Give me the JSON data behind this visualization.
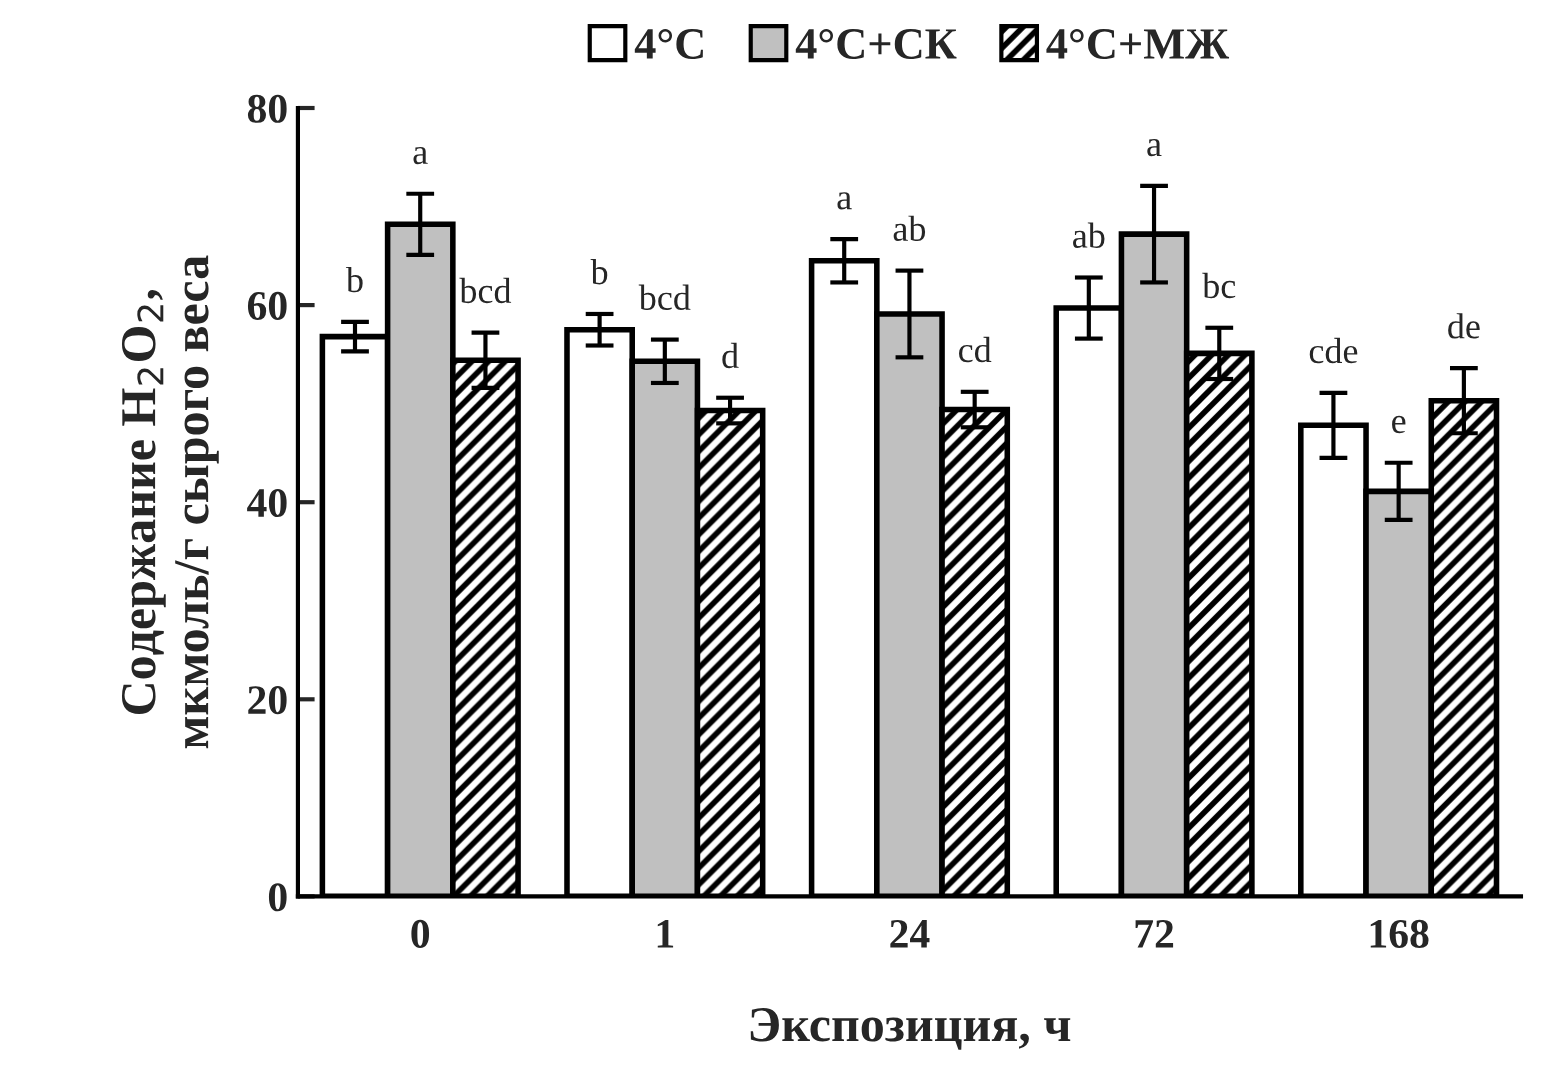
{
  "chart_data": {
    "type": "bar",
    "xlabel": "Экспозиция, ч",
    "ylabel": "Содержание H$_{2}$O$_{2}$,\nмкмоль/г сырого веса",
    "categories": [
      "0",
      "1",
      "24",
      "72",
      "168"
    ],
    "series": [
      {
        "name": "4°C",
        "color": "#ffffff",
        "values": [
          56.8,
          57.5,
          64.5,
          59.7,
          47.8
        ],
        "errors": [
          1.5,
          1.6,
          2.2,
          3.1,
          3.3
        ],
        "value_labels": [
          "b",
          "b",
          "a",
          "ab",
          "cde"
        ]
      },
      {
        "name": "4°C+СК",
        "color": "#c0c0c0",
        "values": [
          68.2,
          54.3,
          59.1,
          67.2,
          41.1
        ],
        "errors": [
          3.1,
          2.2,
          4.4,
          4.9,
          2.9
        ],
        "value_labels": [
          "a",
          "bcd",
          "ab",
          "a",
          "e"
        ]
      },
      {
        "name": "4°C+МЖ",
        "color": "#000000",
        "values": [
          54.4,
          49.3,
          49.4,
          55.1,
          50.3
        ],
        "errors": [
          2.8,
          1.3,
          1.8,
          2.6,
          3.3
        ],
        "value_labels": [
          "bcd",
          "d",
          "cd",
          "bc",
          "de"
        ]
      }
    ],
    "ylim": [
      0,
      80
    ],
    "yticks": [
      0,
      20,
      40,
      60,
      80
    ],
    "grid": false,
    "legend": "top"
  }
}
